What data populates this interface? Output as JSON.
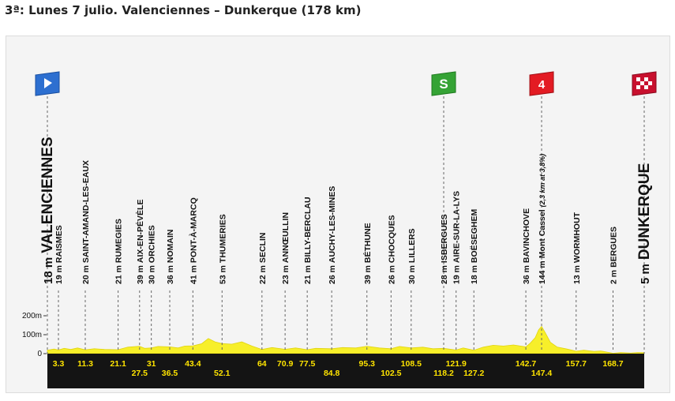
{
  "header": {
    "title": "3ª: Lunes 7 julio. Valenciennes – Dunkerque (178 km)"
  },
  "colors": {
    "terrain": "#f7ef2a",
    "road": "#141414",
    "km_text": "#ffe400",
    "start_flag": "#2d6fd0",
    "sprint_flag": "#35a335",
    "climb_flag": "#e31b23"
  },
  "chart_data": {
    "type": "area",
    "title": "3ª: Lunes 7 julio. Valenciennes – Dunkerque (178 km)",
    "xlabel": "",
    "ylabel": "",
    "xlim": [
      0,
      178
    ],
    "ylim": [
      0,
      200
    ],
    "y_ticks": [
      "200m",
      "100m",
      "0"
    ],
    "markers": {
      "start": "start-flag-icon",
      "sprint": "S",
      "climb": "4",
      "finish": "finish-flag-icon"
    },
    "points": [
      {
        "km": 0,
        "label": "VALENCIENNES",
        "alt": "18 m",
        "elev": 18,
        "type": "start"
      },
      {
        "km": 3.3,
        "label": "RAISMES",
        "alt": "19 m",
        "elev": 19
      },
      {
        "km": 11.3,
        "label": "SAINT-AMAND-LES-EAUX",
        "alt": "20 m",
        "elev": 20
      },
      {
        "km": 21.1,
        "label": "RUMEGIES",
        "alt": "21 m",
        "elev": 21
      },
      {
        "km": 27.5,
        "label": "AIX-EN-PÉVÈLE",
        "alt": "39 m",
        "elev": 39
      },
      {
        "km": 31,
        "label": "ORCHIES",
        "alt": "30 m",
        "elev": 30
      },
      {
        "km": 36.5,
        "label": "NOMAIN",
        "alt": "36 m",
        "elev": 36
      },
      {
        "km": 43.4,
        "label": "PONT-À-MARCQ",
        "alt": "41 m",
        "elev": 41
      },
      {
        "km": 52.1,
        "label": "THUMERIES",
        "alt": "53 m",
        "elev": 53
      },
      {
        "km": 64,
        "label": "SECLIN",
        "alt": "22 m",
        "elev": 22
      },
      {
        "km": 70.9,
        "label": "ANNŒULLIN",
        "alt": "23 m",
        "elev": 23
      },
      {
        "km": 77.5,
        "label": "BILLY-BERCLAU",
        "alt": "21 m",
        "elev": 21
      },
      {
        "km": 84.8,
        "label": "AUCHY-LES-MINES",
        "alt": "26 m",
        "elev": 26
      },
      {
        "km": 95.3,
        "label": "BÉTHUNE",
        "alt": "39 m",
        "elev": 39
      },
      {
        "km": 102.5,
        "label": "CHOCQUES",
        "alt": "26 m",
        "elev": 26
      },
      {
        "km": 108.5,
        "label": "LILLERS",
        "alt": "30 m",
        "elev": 30
      },
      {
        "km": 118.2,
        "label": "ISBERGUES",
        "alt": "28 m",
        "elev": 28,
        "type": "sprint"
      },
      {
        "km": 121.9,
        "label": "AIRE-SUR-LA-LYS",
        "alt": "19 m",
        "elev": 19
      },
      {
        "km": 127.2,
        "label": "BOËSEGHEM",
        "alt": "18 m",
        "elev": 18
      },
      {
        "km": 142.7,
        "label": "BAVINCHOVE",
        "alt": "36 m",
        "elev": 36
      },
      {
        "km": 147.4,
        "label": "Mont Cassel",
        "alt": "144 m",
        "elev": 144,
        "note": "(2,3 km at 3,8%)",
        "type": "climb"
      },
      {
        "km": 157.7,
        "label": "WORMHOUT",
        "alt": "13 m",
        "elev": 13
      },
      {
        "km": 168.7,
        "label": "BERGUES",
        "alt": "2 m",
        "elev": 2
      },
      {
        "km": 178,
        "label": "DUNKERQUE",
        "alt": "5 m",
        "elev": 5,
        "type": "finish"
      }
    ],
    "profile": [
      [
        0,
        18
      ],
      [
        2,
        24
      ],
      [
        3.3,
        19
      ],
      [
        5,
        28
      ],
      [
        7,
        22
      ],
      [
        9,
        30
      ],
      [
        11.3,
        20
      ],
      [
        14,
        26
      ],
      [
        17,
        22
      ],
      [
        21.1,
        21
      ],
      [
        24,
        34
      ],
      [
        27.5,
        39
      ],
      [
        29,
        28
      ],
      [
        31,
        30
      ],
      [
        33,
        38
      ],
      [
        36.5,
        36
      ],
      [
        39,
        30
      ],
      [
        41,
        40
      ],
      [
        43.4,
        41
      ],
      [
        46,
        52
      ],
      [
        48,
        80
      ],
      [
        50,
        62
      ],
      [
        52.1,
        53
      ],
      [
        55,
        50
      ],
      [
        58,
        62
      ],
      [
        61,
        40
      ],
      [
        64,
        22
      ],
      [
        67,
        32
      ],
      [
        70.9,
        23
      ],
      [
        74,
        30
      ],
      [
        77.5,
        21
      ],
      [
        80,
        28
      ],
      [
        84.8,
        26
      ],
      [
        88,
        32
      ],
      [
        92,
        30
      ],
      [
        95.3,
        39
      ],
      [
        99,
        30
      ],
      [
        102.5,
        26
      ],
      [
        105,
        38
      ],
      [
        108.5,
        30
      ],
      [
        112,
        34
      ],
      [
        115,
        26
      ],
      [
        118.2,
        28
      ],
      [
        121.9,
        19
      ],
      [
        124,
        30
      ],
      [
        127.2,
        18
      ],
      [
        130,
        34
      ],
      [
        133,
        44
      ],
      [
        136,
        40
      ],
      [
        139,
        46
      ],
      [
        142.7,
        36
      ],
      [
        144,
        55
      ],
      [
        145.5,
        85
      ],
      [
        146.5,
        125
      ],
      [
        147.4,
        144
      ],
      [
        148.5,
        110
      ],
      [
        150,
        60
      ],
      [
        152,
        35
      ],
      [
        155,
        24
      ],
      [
        157.7,
        13
      ],
      [
        160,
        18
      ],
      [
        163,
        12
      ],
      [
        165,
        14
      ],
      [
        168.7,
        2
      ],
      [
        171,
        6
      ],
      [
        174,
        3
      ],
      [
        176,
        6
      ],
      [
        178,
        5
      ]
    ]
  }
}
